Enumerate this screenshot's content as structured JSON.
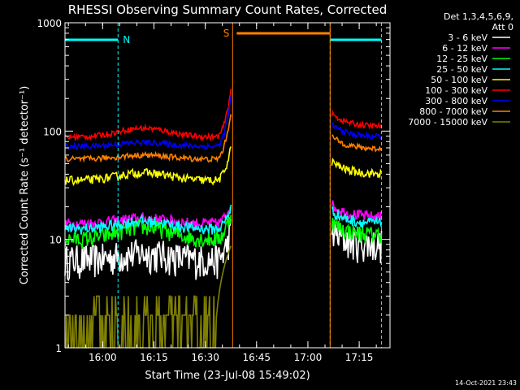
{
  "chart_data": {
    "type": "line",
    "title": "RHESSI Observing Summary Count Rates, Corrected",
    "xlabel": "Start Time (23-Jul-08 15:49:02)",
    "ylabel": "Corrected Count Rate (s⁻¹ detector⁻¹)",
    "y_scale": "log",
    "ylim": [
      1,
      1000
    ],
    "xlim_minutes": [
      0,
      95
    ],
    "x_ticks": [
      {
        "label": "16:00",
        "minute": 11
      },
      {
        "label": "16:15",
        "minute": 26
      },
      {
        "label": "16:30",
        "minute": 41
      },
      {
        "label": "16:45",
        "minute": 56
      },
      {
        "label": "17:00",
        "minute": 71
      },
      {
        "label": "17:15",
        "minute": 86
      }
    ],
    "y_ticks": [
      {
        "label": "1",
        "value": 1
      },
      {
        "label": "10",
        "value": 10
      },
      {
        "label": "100",
        "value": 100
      },
      {
        "label": "1000",
        "value": 1000
      }
    ],
    "legend_header": [
      "Det 1,3,4,5,6,9,",
      "Att 0"
    ],
    "timestamp": "14-Oct-2021 23:43",
    "annotations": {
      "night_label": "N",
      "saa_label": "S",
      "night_color": "#00ffff",
      "saa_color": "#ff8000"
    },
    "night_periods": [
      [
        0,
        15.5
      ],
      [
        77.5,
        92.5
      ]
    ],
    "saa_period": [
      49,
      77.5
    ],
    "data_gap": [
      49,
      77.5
    ],
    "series": [
      {
        "name": "3 - 6 keV",
        "color": "#ffffff",
        "base_pre": 6.5,
        "base_post": 9,
        "noise": 0.12,
        "bump": 0.05,
        "peak": 12
      },
      {
        "name": "6 - 12 keV",
        "color": "#ff00ff",
        "base_pre": 14,
        "base_post": 16,
        "noise": 0.04,
        "bump": 0.04,
        "peak": 22
      },
      {
        "name": "12 - 25 keV",
        "color": "#00ff00",
        "base_pre": 10,
        "base_post": 11,
        "noise": 0.06,
        "bump": 0.1,
        "peak": 18
      },
      {
        "name": "25 - 50 keV",
        "color": "#00ffff",
        "base_pre": 12.5,
        "base_post": 14,
        "noise": 0.04,
        "bump": 0.06,
        "peak": 20
      },
      {
        "name": "50 - 100 keV",
        "color": "#ffff00",
        "base_pre": 35,
        "base_post": 40,
        "noise": 0.03,
        "bump": 0.06,
        "peak": 70
      },
      {
        "name": "100 - 300 keV",
        "color": "#ff0000",
        "base_pre": 88,
        "base_post": 110,
        "noise": 0.02,
        "bump": 0.07,
        "peak": 240
      },
      {
        "name": "300 - 800 keV",
        "color": "#0000ff",
        "base_pre": 72,
        "base_post": 88,
        "noise": 0.02,
        "bump": 0.03,
        "peak": 200
      },
      {
        "name": "800 - 7000 keV",
        "color": "#ff8000",
        "base_pre": 55,
        "base_post": 68,
        "noise": 0.02,
        "bump": 0.03,
        "peak": 150
      },
      {
        "name": "7000 - 15000 keV",
        "color": "#808000",
        "base_pre": 1.5,
        "base_post": 0,
        "noise": 0,
        "bump": 0,
        "peak": 10
      }
    ]
  }
}
